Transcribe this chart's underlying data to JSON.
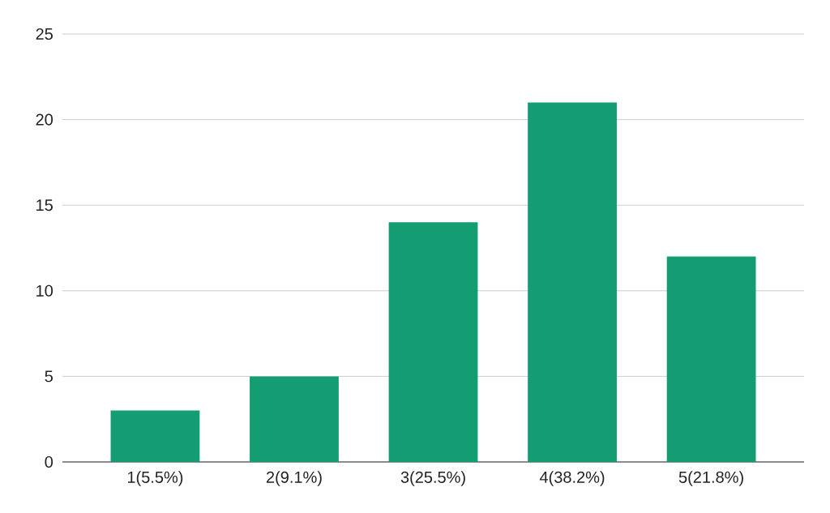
{
  "chart_data": {
    "type": "bar",
    "categories": [
      "1(5.5%)",
      "2(9.1%)",
      "3(25.5%)",
      "4(38.2%)",
      "5(21.8%)"
    ],
    "values": [
      3,
      5,
      14,
      21,
      12
    ],
    "color": "#149d72",
    "ylim": [
      0,
      25
    ],
    "yticks": [
      0,
      5,
      10,
      15,
      20,
      25
    ],
    "grid": "y"
  }
}
